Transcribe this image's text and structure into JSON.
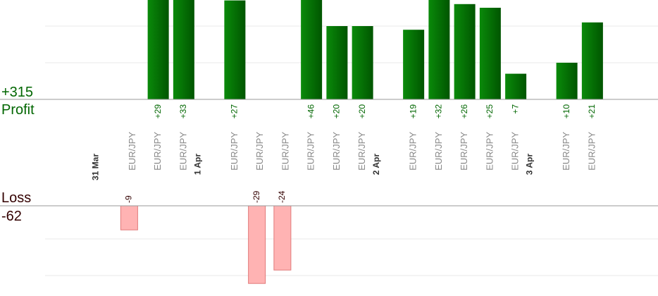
{
  "summary": {
    "profit_total": "+315",
    "profit_label": "Profit",
    "loss_label": "Loss",
    "loss_total": "-62"
  },
  "colors": {
    "profit_bar_dark": "#005500",
    "profit_bar_light": "#0a8a0a",
    "profit_text": "#006600",
    "loss_bar": "#ffb3b3",
    "loss_bar_border": "#e07a7a",
    "loss_text": "#330000",
    "pair_text": "#888888",
    "date_text": "#333333"
  },
  "chart_data": {
    "type": "bar",
    "title": "",
    "xlabel": "",
    "ylabel": "",
    "profit_grid_values": [
      10,
      20
    ],
    "loss_grid_values": [
      10,
      20
    ],
    "groups": [
      {
        "date": "31 Mar",
        "trades": [
          {
            "pair": "EUR/JPY",
            "value": -9
          },
          {
            "pair": "EUR/JPY",
            "value": 29
          },
          {
            "pair": "EUR/JPY",
            "value": 33
          }
        ]
      },
      {
        "date": "1 Apr",
        "trades": [
          {
            "pair": "EUR/JPY",
            "value": 27
          },
          {
            "pair": "EUR/JPY",
            "value": -29
          },
          {
            "pair": "EUR/JPY",
            "value": -24
          },
          {
            "pair": "EUR/JPY",
            "value": 46
          },
          {
            "pair": "EUR/JPY",
            "value": 20
          },
          {
            "pair": "EUR/JPY",
            "value": 20
          }
        ]
      },
      {
        "date": "2 Apr",
        "trades": [
          {
            "pair": "EUR/JPY",
            "value": 19
          },
          {
            "pair": "EUR/JPY",
            "value": 32
          },
          {
            "pair": "EUR/JPY",
            "value": 26
          },
          {
            "pair": "EUR/JPY",
            "value": 25
          },
          {
            "pair": "EUR/JPY",
            "value": 7
          }
        ]
      },
      {
        "date": "3 Apr",
        "trades": [
          {
            "pair": "EUR/JPY",
            "value": 10
          },
          {
            "pair": "EUR/JPY",
            "value": 21
          }
        ]
      }
    ]
  }
}
